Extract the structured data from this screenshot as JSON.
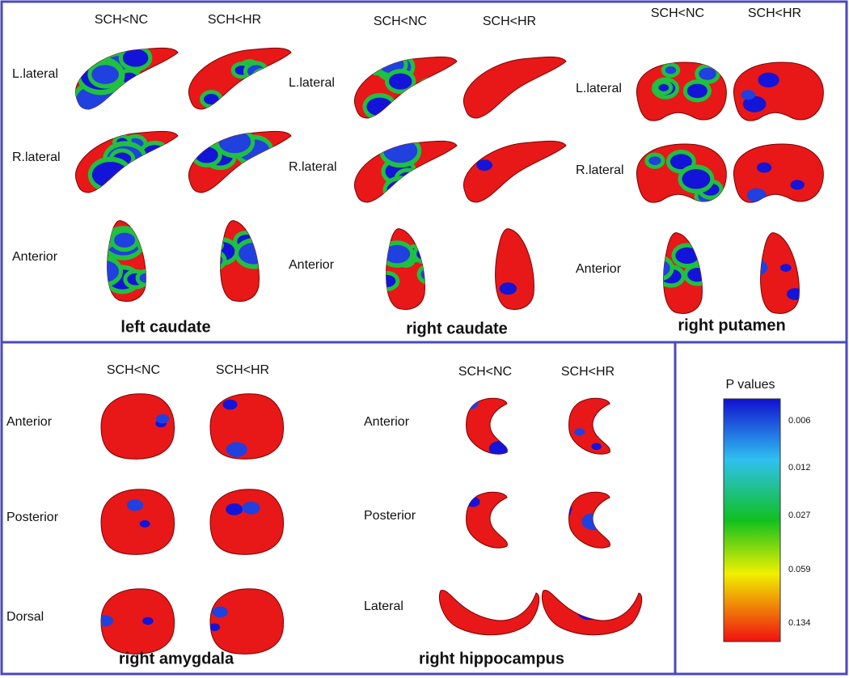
{
  "panels": [
    {
      "title": "left caudate",
      "columns": [
        "SCH<NC",
        "SCH<HR"
      ],
      "rows": [
        "L.lateral",
        "R.lateral",
        "Anterior"
      ]
    },
    {
      "title": "right caudate",
      "columns": [
        "SCH<NC",
        "SCH<HR"
      ],
      "rows": [
        "L.lateral",
        "R.lateral",
        "Anterior"
      ]
    },
    {
      "title": "right putamen",
      "columns": [
        "SCH<NC",
        "SCH<HR"
      ],
      "rows": [
        "L.lateral",
        "R.lateral",
        "Anterior"
      ]
    },
    {
      "title": "right amygdala",
      "columns": [
        "SCH<NC",
        "SCH<HR"
      ],
      "rows": [
        "Anterior",
        "Posterior",
        "Dorsal"
      ]
    },
    {
      "title": "right hippocampus",
      "columns": [
        "SCH<NC",
        "SCH<HR"
      ],
      "rows": [
        "Anterior",
        "Posterior",
        "Lateral"
      ]
    }
  ],
  "legend": {
    "title": "P values",
    "ticks": [
      "0.006",
      "0.012",
      "0.027",
      "0.059",
      "0.134"
    ]
  }
}
